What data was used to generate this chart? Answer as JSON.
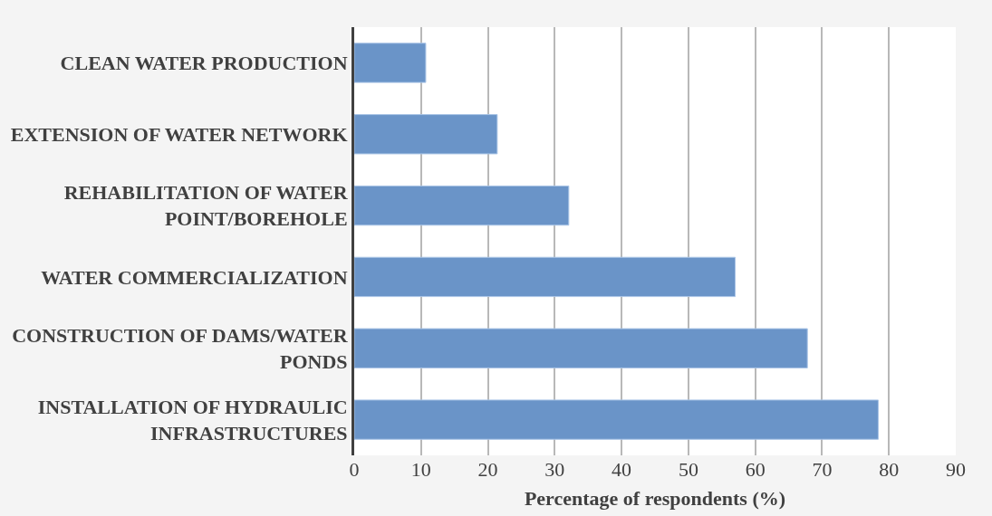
{
  "chart_data": {
    "type": "bar",
    "orientation": "horizontal",
    "categories": [
      "CLEAN WATER PRODUCTION",
      "EXTENSION OF WATER NETWORK",
      "REHABILITATION OF WATER POINT/BOREHOLE",
      "WATER COMMERCIALIZATION",
      "CONSTRUCTION OF DAMS/WATER PONDS",
      "INSTALLATION OF HYDRAULIC INFRASTRUCTURES"
    ],
    "values": [
      10.7,
      21.4,
      32.1,
      57.0,
      67.8,
      78.4
    ],
    "color": "#6a94c8",
    "xlabel": "Percentage of respondents (%)",
    "xlim": [
      0,
      90
    ],
    "xticks": [
      0,
      10,
      20,
      30,
      40,
      50,
      60,
      70,
      80,
      90
    ],
    "grid": "x"
  }
}
